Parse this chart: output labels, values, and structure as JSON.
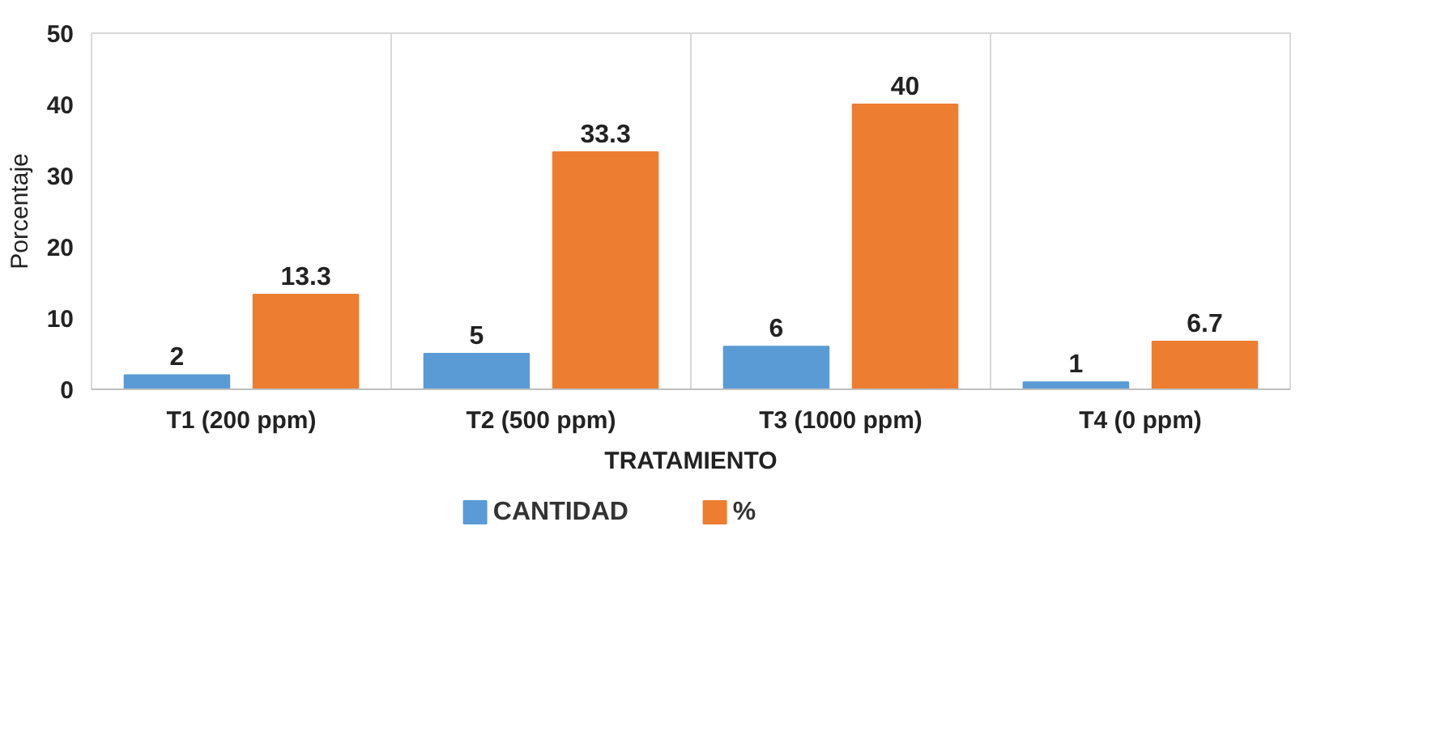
{
  "chart_data": {
    "type": "bar",
    "xlabel": "TRATAMIENTO",
    "ylabel": "Porcentaje",
    "categories": [
      "T1 (200 ppm)",
      "T2 (500 ppm)",
      "T3 (1000 ppm)",
      "T4 (0 ppm)"
    ],
    "series": [
      {
        "name": "CANTIDAD",
        "color": "#5b9bd5",
        "values": [
          2,
          5,
          6,
          1
        ]
      },
      {
        "name": "%",
        "color": "#ed7d31",
        "values": [
          13.3,
          33.3,
          40,
          6.7
        ]
      }
    ],
    "ylim": [
      0,
      50
    ],
    "yticks": [
      0,
      10,
      20,
      30,
      40,
      50
    ],
    "grid": "x",
    "legend": "bottom",
    "data_labels": true
  }
}
